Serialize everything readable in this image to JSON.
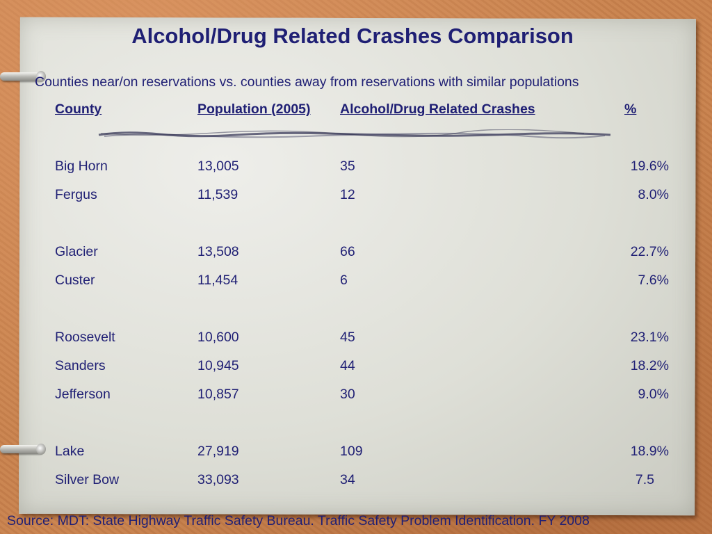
{
  "title": "Alcohol/Drug Related Crashes Comparison",
  "subtitle": "Counties near/on reservations vs. counties away from reservations with similar populations",
  "columns": {
    "county": "County",
    "population": "Population (2005)",
    "crashes": "Alcohol/Drug Related Crashes",
    "percent": "%"
  },
  "rows": [
    {
      "county": "Big Horn",
      "population": "13,005",
      "crashes": "35",
      "percent": "19.6%"
    },
    {
      "county": "Fergus",
      "population": "11,539",
      "crashes": "12",
      "percent": "8.0%"
    },
    {
      "county": "Glacier",
      "population": "13,508",
      "crashes": "66",
      "percent": "22.7%"
    },
    {
      "county": "Custer",
      "population": "11,454",
      "crashes": "6",
      "percent": "7.6%"
    },
    {
      "county": "Roosevelt",
      "population": "10,600",
      "crashes": "45",
      "percent": "23.1%"
    },
    {
      "county": "Sanders",
      "population": "10,945",
      "crashes": "44",
      "percent": "18.2%"
    },
    {
      "county": "Jefferson",
      "population": "10,857",
      "crashes": "30",
      "percent": "9.0%"
    },
    {
      "county": "Lake",
      "population": "27,919",
      "crashes": "109",
      "percent": "18.9%"
    },
    {
      "county": "Silver Bow",
      "population": "33,093",
      "crashes": "34",
      "percent": "7.5"
    }
  ],
  "source": "Source: MDT: State Highway Traffic Safety Bureau. Traffic Safety Problem Identification. FY 2008",
  "colors": {
    "text": "#1f1f74",
    "background": "#c8824e",
    "paper": "#dcdcd3"
  }
}
